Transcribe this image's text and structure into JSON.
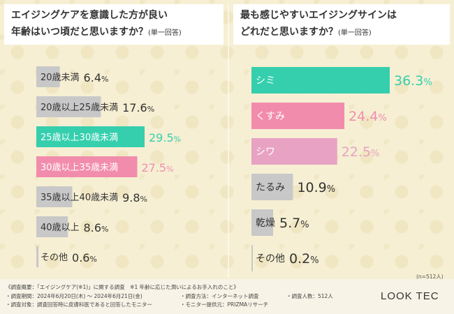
{
  "chart_data": [
    {
      "type": "bar",
      "orientation": "horizontal",
      "title_line1": "エイジングケアを意識した方が良い",
      "title_line2": "年齢はいつ頃だと思いますか？",
      "title_note": "(単一回答)",
      "unit": "%",
      "xlim": [
        0,
        29.5
      ],
      "categories": [
        "20歳未満",
        "20歳以上25歳未満",
        "25歳以上30歳未満",
        "30歳以上35歳未満",
        "35歳以上40歳未満",
        "40歳以上",
        "その他"
      ],
      "values": [
        6.4,
        17.6,
        29.5,
        27.5,
        9.8,
        8.6,
        0.6
      ],
      "bar_colors": [
        "#c8c8c8",
        "#c8c8c8",
        "#35cfae",
        "#f28cad",
        "#c8c8c8",
        "#c8c8c8",
        "#c8c8c8"
      ]
    },
    {
      "type": "bar",
      "orientation": "horizontal",
      "title_line1": "最も感じやすいエイジングサインは",
      "title_line2": "どれだと思いますか？",
      "title_note": "(単一回答)",
      "unit": "%",
      "xlim": [
        0,
        36.3
      ],
      "categories": [
        "シミ",
        "くすみ",
        "シワ",
        "たるみ",
        "乾燥",
        "その他"
      ],
      "values": [
        36.3,
        24.4,
        22.5,
        10.9,
        5.7,
        0.2
      ],
      "bar_colors": [
        "#35cfae",
        "#f28cad",
        "#e8a2c3",
        "#c8c8c8",
        "#c8c8c8",
        "#c8c8c8"
      ]
    }
  ],
  "sample_note": "(n=512人)",
  "footer": {
    "summary": "《調査概要：「エイジングケア(※1)」に関する調査　※1 年齢に応じた潤いによるお手入れのこと》",
    "period": "・調査期間：2024年6月20日(木) ～ 2024年6月21日(金)",
    "method": "・調査方法：インターネット調査",
    "count": "・調査人数：512人",
    "target": "・調査対象：調査回答時に皮膚科医であると回答したモニター",
    "provider": "・モニター提供元：PRIZMAリサーチ"
  },
  "brand": "LOOK TEC"
}
